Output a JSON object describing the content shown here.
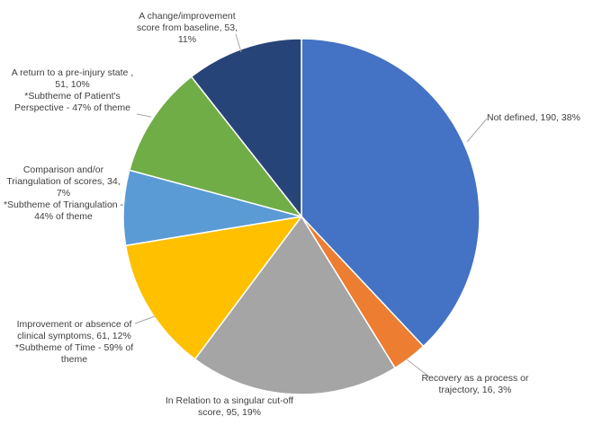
{
  "chart_data": {
    "type": "pie",
    "values": [
      190,
      16,
      95,
      61,
      34,
      51,
      53
    ],
    "value_labels": [
      "Not defined, 190, 38%",
      "Recovery as a process or trajectory, 16, 3%",
      "In Relation to a singular cut-off score, 95, 19%",
      "Improvement or absence of clinical symptoms, 61, 12%",
      "Comparison and/or Triangulation of scores, 34, 7%",
      "A return to a pre-injury state , 51, 10%",
      "A change/improvement score from baseline, 53, 11%"
    ],
    "notes": [
      null,
      null,
      null,
      "*Subtheme of Time - 59% of theme",
      "*Subtheme of Triangulation -  44% of theme",
      "*Subtheme of Patient's Perspective - 47% of theme",
      null
    ],
    "colors": [
      "#4472c4",
      "#ed7d31",
      "#a5a5a5",
      "#ffc000",
      "#5b9bd5",
      "#70ad47",
      "#264478"
    ]
  }
}
